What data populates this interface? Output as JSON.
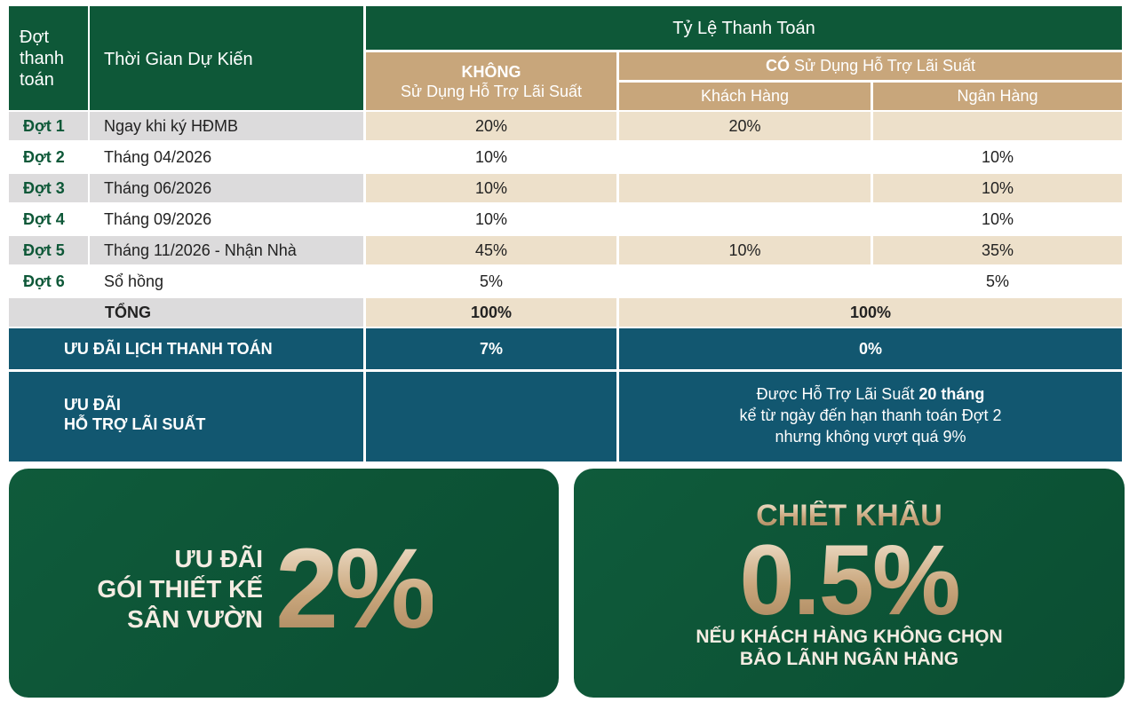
{
  "header": {
    "col_dot": [
      "Đợt",
      "thanh",
      "toán"
    ],
    "col_time": "Thời Gian Dự Kiến",
    "col_rate": "Tỷ Lệ Thanh Toán",
    "khong_bold": "KHÔNG",
    "khong_sub": "Sử Dụng Hỗ Trợ Lãi Suất",
    "co_bold": "CÓ",
    "co_sub": "Sử Dụng Hỗ Trợ Lãi Suất",
    "khach_hang": "Khách Hàng",
    "ngan_hang": "Ngân Hàng"
  },
  "rows": [
    {
      "dot": "Đợt 1",
      "time": "Ngay khi ký HĐMB",
      "khong": "20%",
      "khach": "20%",
      "ngan": ""
    },
    {
      "dot": "Đợt 2",
      "time": "Tháng 04/2026",
      "khong": "10%",
      "khach": "",
      "ngan": "10%"
    },
    {
      "dot": "Đợt 3",
      "time": "Tháng 06/2026",
      "khong": "10%",
      "khach": "",
      "ngan": "10%"
    },
    {
      "dot": "Đợt 4",
      "time": "Tháng 09/2026",
      "khong": "10%",
      "khach": "",
      "ngan": "10%"
    },
    {
      "dot": "Đợt 5",
      "time": "Tháng 11/2026 - Nhận Nhà",
      "khong": "45%",
      "khach": "10%",
      "ngan": "35%"
    },
    {
      "dot": "Đợt 6",
      "time": "Sổ hồng",
      "khong": "5%",
      "khach": "",
      "ngan": "5%"
    }
  ],
  "total": {
    "label": "TỔNG",
    "khong": "100%",
    "co": "100%"
  },
  "uu_dai_lich": {
    "label": "ƯU ĐÃI LỊCH THANH TOÁN",
    "khong": "7%",
    "co": "0%"
  },
  "uu_dai_ho_tro": {
    "label_line1": "ƯU ĐÃI",
    "label_line2": "HỖ TRỢ LÃI SUẤT",
    "line1_pre": "Được Hỗ Trợ Lãi Suất ",
    "line1_bold": "20 tháng",
    "line2": "kể từ ngày đến hạn thanh toán Đợt 2",
    "line3": "nhưng không vượt quá 9%"
  },
  "banner_left": {
    "line1": "ƯU ĐÃI",
    "line2": "GÓI THIẾT KẾ",
    "line3": "SÂN VƯỜN",
    "big": "2%"
  },
  "banner_right": {
    "title": "CHIẾT KHẤU",
    "big": "0.5%",
    "line1": "NẾU KHÁCH HÀNG KHÔNG CHỌN",
    "line2": "BẢO LÃNH NGÂN HÀNG"
  },
  "colors": {
    "green": "#0e5838",
    "tan": "#c8a67b",
    "beige": "#ede0ca",
    "teal": "#125770",
    "gold": "#d9c0a0"
  }
}
